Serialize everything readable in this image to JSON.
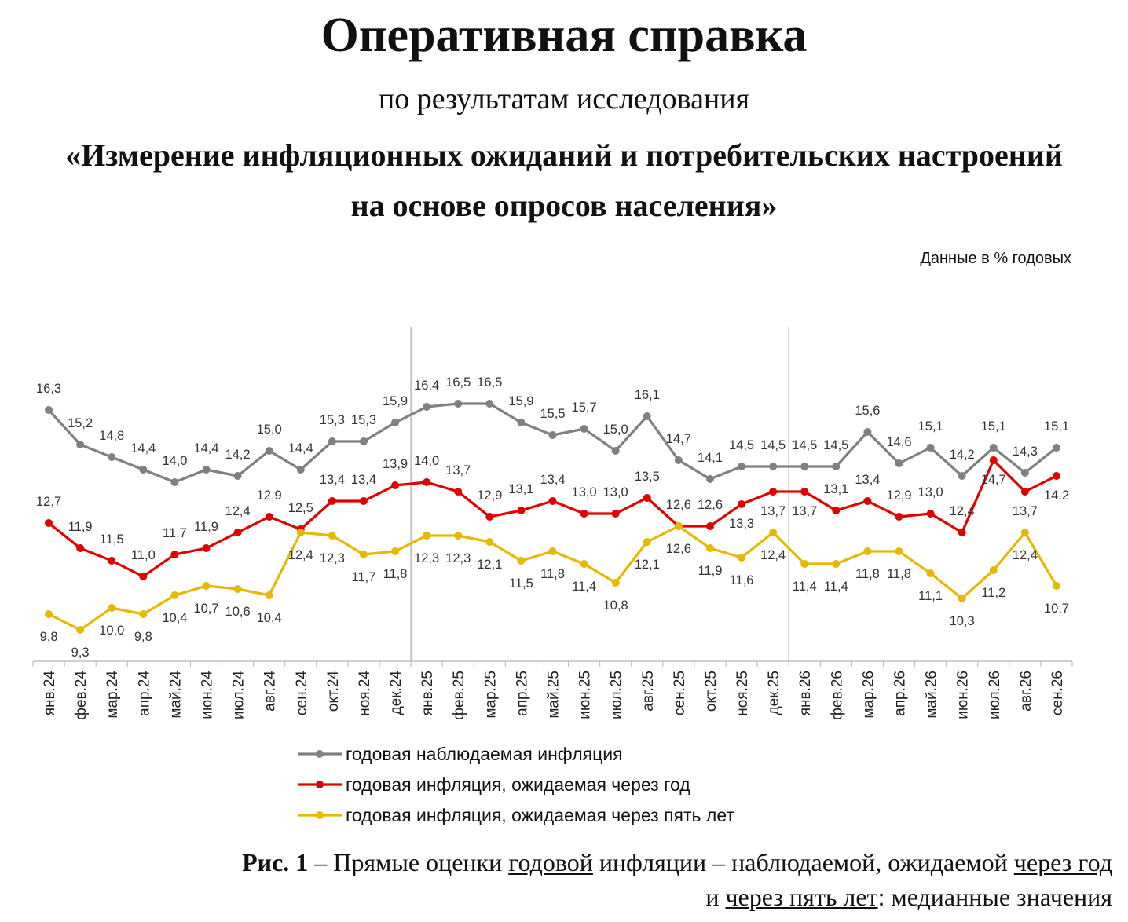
{
  "header": {
    "title": "Оперативная справка",
    "subtitle": "по результатам исследования",
    "study_line1": "«Измерение инфляционных ожиданий и потребительских настроений",
    "study_line2": "на основе опросов населения»"
  },
  "units_note": "Данные в % годовых",
  "caption": {
    "figure_label": "Рис. 1",
    "p1": " – Прямые оценки ",
    "u1": "годовой",
    "p2": " инфляции – наблюдаемой, ожидаемой ",
    "u2": "через год",
    "p3": "и ",
    "u3": "через пять лет",
    "p4": ": медианные значения"
  },
  "chart_data": {
    "type": "line",
    "categories": [
      "янв.24",
      "фев.24",
      "мар.24",
      "апр.24",
      "май.24",
      "июн.24",
      "июл.24",
      "авг.24",
      "сен.24",
      "окт.24",
      "ноя.24",
      "дек.24",
      "янв.25",
      "фев.25",
      "мар.25",
      "апр.25",
      "май.25",
      "июн.25",
      "июл.25",
      "авг.25",
      "сен.25",
      "окт.25",
      "ноя.25",
      "дек.25",
      "янв.26",
      "фев.26",
      "мар.26",
      "апр.26",
      "май.26",
      "июн.26",
      "июл.26",
      "авг.26",
      "сен.26"
    ],
    "series": [
      {
        "name": "годовая наблюдаемая  инфляция",
        "color": "#808080",
        "values": [
          16.3,
          15.2,
          14.8,
          14.4,
          14.0,
          14.4,
          14.2,
          15.0,
          14.4,
          15.3,
          15.3,
          15.9,
          16.4,
          16.5,
          16.5,
          15.9,
          15.5,
          15.7,
          15.0,
          16.1,
          14.7,
          14.1,
          14.5,
          14.5,
          14.5,
          14.5,
          15.6,
          14.6,
          15.1,
          14.2,
          15.1,
          14.3,
          15.1
        ],
        "labels": [
          "16,3",
          "15,2",
          "14,8",
          "14,4",
          "14,0",
          "14,4",
          "14,2",
          "15,0",
          "14,4",
          "15,3",
          "15,3",
          "15,9",
          "16,4",
          "16,5",
          "16,5",
          "15,9",
          "15,5",
          "15,7",
          "15,0",
          "16,1",
          "14,7",
          "14,1",
          "14,5",
          "14,5",
          "14,5",
          "14,5",
          "15,6",
          "14,6",
          "15,1",
          "14,2",
          "15,1",
          "14,3",
          "15,1"
        ]
      },
      {
        "name": "годовая инфляция,  ожидаемая  через год",
        "color": "#e00000",
        "values": [
          12.7,
          11.9,
          11.5,
          11.0,
          11.7,
          11.9,
          12.4,
          12.9,
          12.5,
          13.4,
          13.4,
          13.9,
          14.0,
          13.7,
          12.9,
          13.1,
          13.4,
          13.0,
          13.0,
          13.5,
          12.6,
          12.6,
          13.3,
          13.7,
          13.7,
          13.1,
          13.4,
          12.9,
          13.0,
          12.4,
          14.7,
          13.7,
          14.2
        ],
        "labels": [
          "12,7",
          "11,9",
          "11,5",
          "11,0",
          "11,7",
          "11,9",
          "12,4",
          "12,9",
          "12,5",
          "13,4",
          "13,4",
          "13,9",
          "14,0",
          "13,7",
          "12,9",
          "13,1",
          "13,4",
          "13,0",
          "13,0",
          "13,5",
          "12,6",
          "12,6",
          "13,3",
          "13,7",
          "13,7",
          "13,1",
          "13,4",
          "12,9",
          "13,0",
          "12,4",
          "14,7",
          "13,7",
          "14,2"
        ]
      },
      {
        "name": "годовая инфляция,  ожидаемая  через пять лет",
        "color": "#e6b800",
        "values": [
          9.8,
          9.3,
          10.0,
          9.8,
          10.4,
          10.7,
          10.6,
          10.4,
          12.4,
          12.3,
          11.7,
          11.8,
          12.3,
          12.3,
          12.1,
          11.5,
          11.8,
          11.4,
          10.8,
          12.1,
          12.6,
          11.9,
          11.6,
          12.4,
          11.4,
          11.4,
          11.8,
          11.8,
          11.1,
          10.3,
          11.2,
          12.4,
          10.7
        ],
        "labels": [
          "9,8",
          "9,3",
          "10,0",
          "9,8",
          "10,4",
          "10,7",
          "10,6",
          "10,4",
          "12,4",
          "12,3",
          "11,7",
          "11,8",
          "12,3",
          "12,3",
          "12,1",
          "11,5",
          "11,8",
          "11,4",
          "10,8",
          "12,1",
          "12,6",
          "11,9",
          "11,6",
          "12,4",
          "11,4",
          "11,4",
          "11,8",
          "11,8",
          "11,1",
          "10,3",
          "11,2",
          "12,4",
          "10,7"
        ]
      }
    ],
    "ylim": [
      8,
      17.5
    ],
    "year_separators_after": [
      "дек.24",
      "дек.25"
    ],
    "legend_position": "bottom",
    "grid": false
  }
}
